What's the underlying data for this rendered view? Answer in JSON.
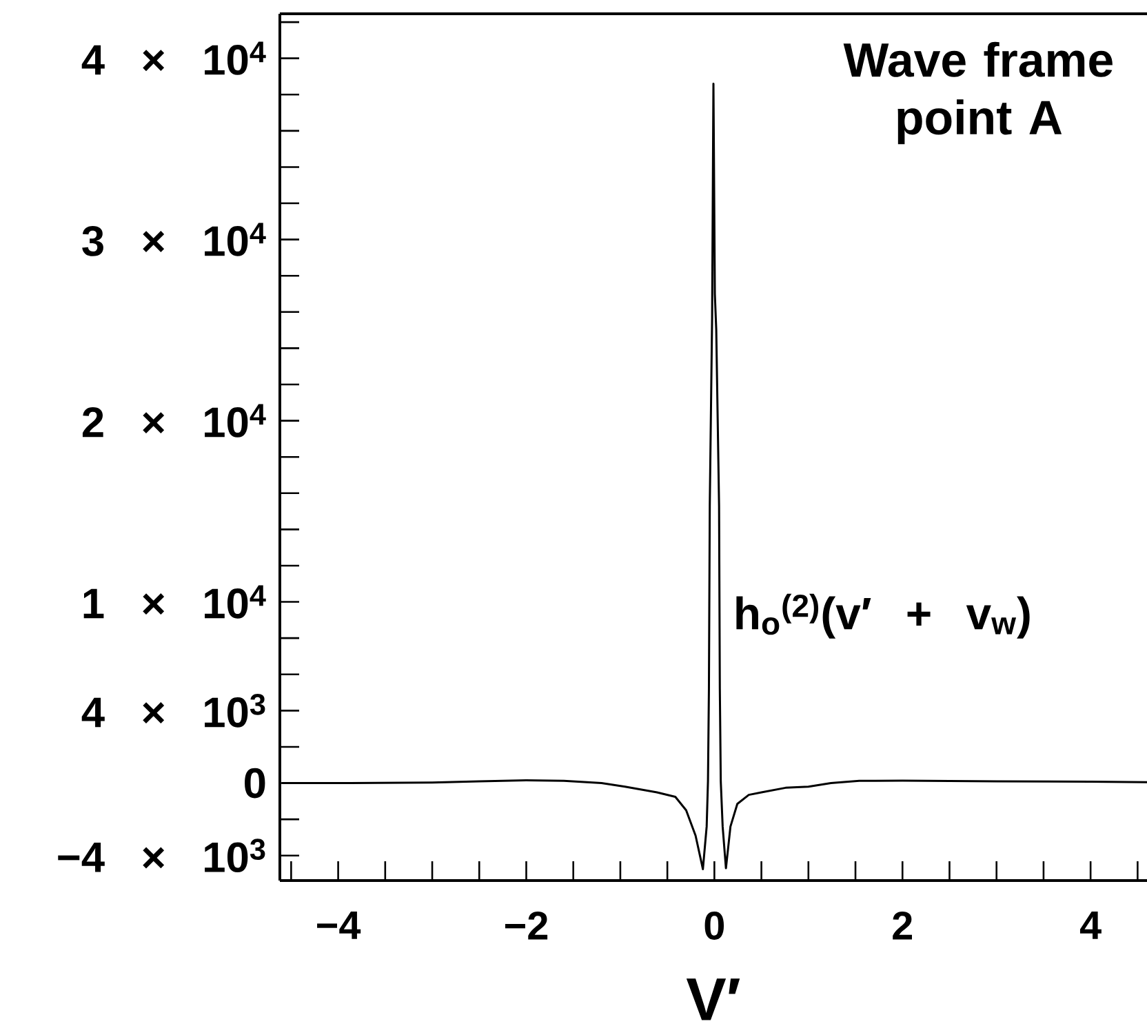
{
  "chart_data": {
    "type": "line",
    "xlabel": "V′",
    "annotations": [
      "Wave frame point A"
    ],
    "xlim": [
      -4.62,
      4.6
    ],
    "ylim": [
      -5380,
      42460
    ],
    "xticks": [
      {
        "value": -4.5,
        "label": null
      },
      {
        "value": -4,
        "label": "−4"
      },
      {
        "value": -3.5,
        "label": null
      },
      {
        "value": -3,
        "label": null
      },
      {
        "value": -2.5,
        "label": null
      },
      {
        "value": -2,
        "label": "−2"
      },
      {
        "value": -1.5,
        "label": null
      },
      {
        "value": -1,
        "label": null
      },
      {
        "value": -0.5,
        "label": null
      },
      0,
      {
        "value": 0.5,
        "label": null
      },
      {
        "value": 1,
        "label": null
      },
      {
        "value": 1.5,
        "label": null
      },
      2,
      {
        "value": 2.5,
        "label": null
      },
      {
        "value": 3,
        "label": null
      },
      {
        "value": 3.5,
        "label": null
      },
      4,
      {
        "value": 4.5,
        "label": null
      }
    ],
    "yticks": [
      {
        "value": -4000,
        "label": "−4 × 10$^{3}$"
      },
      {
        "value": -2000,
        "label": null
      },
      0,
      {
        "value": 2000,
        "label": null
      },
      {
        "value": 4000,
        "label": "4 × 10$^{3}$"
      },
      {
        "value": 6000,
        "label": null
      },
      {
        "value": 8000,
        "label": null
      },
      {
        "value": 10000,
        "label": "1 × 10$^{4}$"
      },
      {
        "value": 12000,
        "label": null
      },
      {
        "value": 14000,
        "label": null
      },
      {
        "value": 16000,
        "label": null
      },
      {
        "value": 18000,
        "label": null
      },
      {
        "value": 20000,
        "label": "2 × 10$^{4}$"
      },
      {
        "value": 22000,
        "label": null
      },
      {
        "value": 24000,
        "label": null
      },
      {
        "value": 26000,
        "label": null
      },
      {
        "value": 28000,
        "label": null
      },
      {
        "value": 30000,
        "label": "3 × 10$^{4}$"
      },
      {
        "value": 32000,
        "label": null
      },
      {
        "value": 34000,
        "label": null
      },
      {
        "value": 36000,
        "label": null
      },
      {
        "value": 38000,
        "label": null
      },
      {
        "value": 40000,
        "label": "4 × 10$^{4}$"
      },
      {
        "value": 42000,
        "label": null
      }
    ],
    "x": [
      -4.6,
      -4.0,
      -3.0,
      -2.5,
      -2.0,
      -1.6,
      -1.2,
      -0.95,
      -0.61,
      -0.415,
      -0.3,
      -0.2,
      -0.146,
      -0.122,
      -0.082,
      -0.068,
      -0.058,
      -0.049,
      -0.024,
      -0.01,
      0.005,
      0.02,
      0.05,
      0.058,
      0.068,
      0.088,
      0.123,
      0.171,
      0.244,
      0.366,
      0.51,
      0.757,
      1.0,
      1.24,
      1.54,
      2.0,
      3.0,
      4.0,
      4.6
    ],
    "series": [
      {
        "name": "h$_{o}$$^{(2)}$(v′ + v$_{w}$)",
        "color": "#000000",
        "values": [
          0,
          0,
          30,
          100,
          150,
          120,
          0,
          -200,
          -510,
          -760,
          -1500,
          -2900,
          -4180,
          -4750,
          -2400,
          100,
          5200,
          15300,
          25700,
          38600,
          27000,
          25000,
          15300,
          5200,
          100,
          -2400,
          -4700,
          -2400,
          -1150,
          -650,
          -500,
          -260,
          -200,
          0,
          120,
          130,
          100,
          80,
          50
        ]
      }
    ]
  }
}
